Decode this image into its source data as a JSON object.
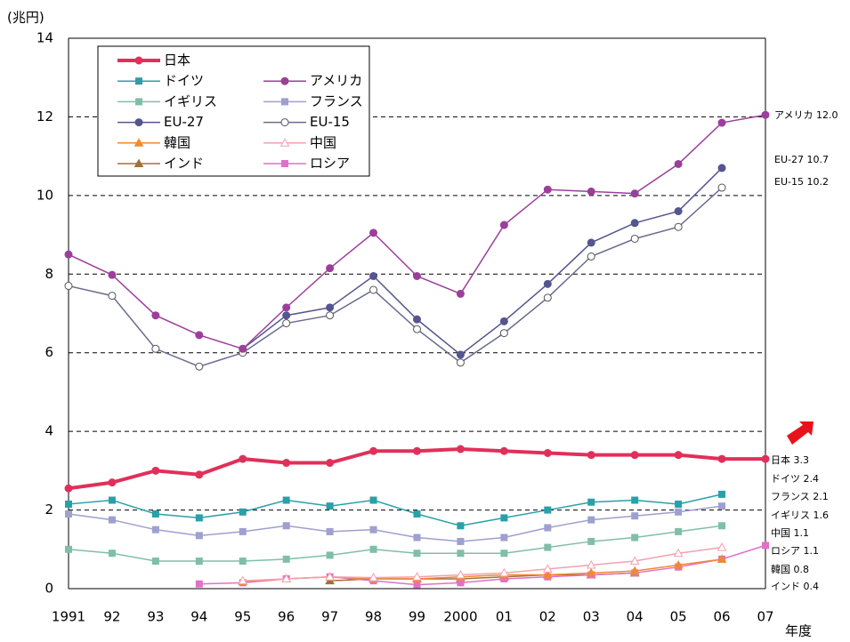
{
  "chart_data": {
    "type": "line",
    "y_label": "(兆円)",
    "x_label": "年度",
    "categories": [
      "1991",
      "92",
      "93",
      "94",
      "95",
      "96",
      "97",
      "98",
      "99",
      "2000",
      "01",
      "02",
      "03",
      "04",
      "05",
      "06",
      "07"
    ],
    "ylim": [
      0,
      14
    ],
    "yticks": [
      0,
      2,
      4,
      6,
      8,
      10,
      12,
      14
    ],
    "grid": true,
    "series": [
      {
        "name": "日本",
        "color": "#e0305a",
        "marker": "circle",
        "values": [
          2.55,
          2.7,
          3.0,
          2.9,
          3.3,
          3.2,
          3.2,
          3.5,
          3.5,
          3.55,
          3.5,
          3.45,
          3.4,
          3.4,
          3.4,
          3.3,
          3.3
        ]
      },
      {
        "name": "アメリカ",
        "color": "#9b3f9b",
        "marker": "circle",
        "values": [
          8.5,
          7.98,
          6.95,
          6.45,
          6.1,
          7.15,
          8.15,
          9.05,
          7.95,
          7.5,
          9.25,
          10.15,
          10.1,
          10.05,
          10.8,
          11.85,
          12.05
        ]
      },
      {
        "name": "ドイツ",
        "color": "#2aa0a8",
        "marker": "square",
        "values": [
          2.15,
          2.25,
          1.9,
          1.8,
          1.95,
          2.25,
          2.1,
          2.25,
          1.9,
          1.6,
          1.8,
          2.0,
          2.2,
          2.25,
          2.15,
          2.4,
          null
        ]
      },
      {
        "name": "フランス",
        "color": "#9f9fd0",
        "marker": "square",
        "values": [
          1.9,
          1.75,
          1.5,
          1.35,
          1.45,
          1.6,
          1.45,
          1.5,
          1.3,
          1.2,
          1.3,
          1.55,
          1.75,
          1.85,
          1.95,
          2.1,
          null
        ]
      },
      {
        "name": "イギリス",
        "color": "#7fbfa8",
        "marker": "square",
        "values": [
          1.0,
          0.9,
          0.7,
          0.7,
          0.7,
          0.75,
          0.85,
          1.0,
          0.9,
          0.9,
          0.9,
          1.05,
          1.2,
          1.3,
          1.45,
          1.6,
          null
        ]
      },
      {
        "name": "EU-15",
        "color": "#6b6b8f",
        "marker": "open-circle",
        "values": [
          7.7,
          7.45,
          6.1,
          5.65,
          6.0,
          6.75,
          6.95,
          7.6,
          6.6,
          5.75,
          6.5,
          7.4,
          8.45,
          8.9,
          9.2,
          10.2,
          null
        ]
      },
      {
        "name": "EU-27",
        "color": "#55558f",
        "marker": "circle",
        "values": [
          null,
          null,
          null,
          null,
          6.1,
          6.95,
          7.15,
          7.95,
          6.85,
          5.95,
          6.8,
          7.75,
          8.8,
          9.3,
          9.6,
          10.7,
          null
        ]
      },
      {
        "name": "中国",
        "color": "#f4a0b0",
        "marker": "open-triangle",
        "values": [
          null,
          null,
          null,
          null,
          0.2,
          0.25,
          0.3,
          0.28,
          0.3,
          0.35,
          0.4,
          0.5,
          0.6,
          0.7,
          0.9,
          1.05,
          null
        ]
      },
      {
        "name": "韓国",
        "color": "#f08a30",
        "marker": "triangle",
        "values": [
          null,
          null,
          null,
          null,
          0.18,
          0.25,
          0.3,
          0.25,
          0.25,
          0.3,
          0.35,
          0.35,
          0.4,
          0.45,
          0.6,
          0.75,
          null
        ]
      },
      {
        "name": "ロシア",
        "color": "#e070c8",
        "marker": "square",
        "values": [
          null,
          null,
          null,
          0.12,
          0.15,
          0.25,
          0.3,
          0.2,
          0.1,
          0.15,
          0.25,
          0.3,
          0.35,
          0.4,
          0.55,
          0.75,
          1.1
        ]
      },
      {
        "name": "インド",
        "color": "#a0703a",
        "marker": "triangle",
        "values": [
          null,
          null,
          null,
          null,
          null,
          null,
          0.2,
          0.25,
          0.25,
          0.25,
          0.3,
          0.35,
          0.35,
          0.4,
          null,
          null,
          null
        ]
      }
    ],
    "annotations": [
      "アメリカ 12.0",
      "EU-27 10.7",
      "EU-15 10.2",
      "日本 3.3",
      "ドイツ 2.4",
      "フランス 2.1",
      "イギリス 1.6",
      "中国 1.1",
      "ロシア 1.1",
      "韓国 0.8",
      "インド 0.4"
    ]
  }
}
